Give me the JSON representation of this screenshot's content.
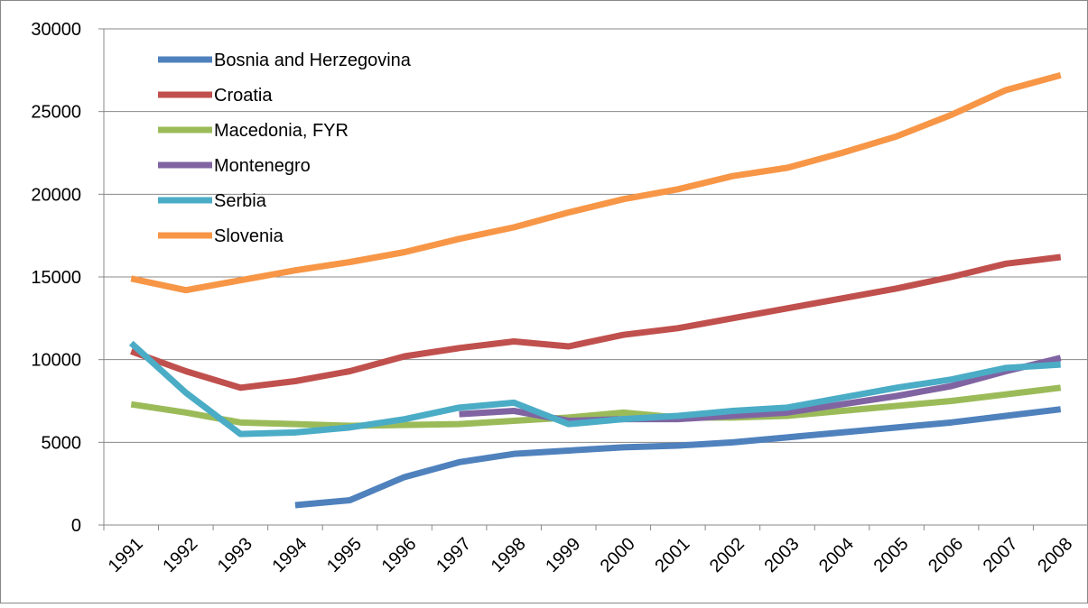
{
  "chart_data": {
    "type": "line",
    "categories": [
      "1991",
      "1992",
      "1993",
      "1994",
      "1995",
      "1996",
      "1997",
      "1998",
      "1999",
      "2000",
      "2001",
      "2002",
      "2003",
      "2004",
      "2005",
      "2006",
      "2007",
      "2008"
    ],
    "series": [
      {
        "name": "Bosnia and Herzegovina",
        "color": "#4f81bd",
        "values": [
          null,
          null,
          null,
          1200,
          1500,
          2900,
          3800,
          4300,
          4500,
          4700,
          4800,
          5000,
          5300,
          5600,
          5900,
          6200,
          6600,
          7000
        ]
      },
      {
        "name": "Croatia",
        "color": "#c0504d",
        "values": [
          10500,
          9300,
          8300,
          8700,
          9300,
          10200,
          10700,
          11100,
          10800,
          11500,
          11900,
          12500,
          13100,
          13700,
          14300,
          15000,
          15800,
          16200
        ]
      },
      {
        "name": "Macedonia, FYR",
        "color": "#9bbb59",
        "values": [
          7300,
          6800,
          6200,
          6100,
          6000,
          6050,
          6100,
          6300,
          6500,
          6800,
          6500,
          6500,
          6600,
          6900,
          7200,
          7500,
          7900,
          8300
        ]
      },
      {
        "name": "Montenegro",
        "color": "#8064a2",
        "values": [
          null,
          null,
          null,
          null,
          null,
          null,
          6700,
          6900,
          6300,
          6400,
          6400,
          6600,
          6800,
          7300,
          7800,
          8400,
          9300,
          10100
        ]
      },
      {
        "name": "Serbia",
        "color": "#4bacc6",
        "values": [
          11000,
          8000,
          5500,
          5600,
          5900,
          6400,
          7100,
          7400,
          6100,
          6400,
          6600,
          6900,
          7100,
          7700,
          8300,
          8800,
          9500,
          9700
        ]
      },
      {
        "name": "Slovenia",
        "color": "#f79646",
        "values": [
          14900,
          14200,
          14800,
          15400,
          15900,
          16500,
          17300,
          18000,
          18900,
          19700,
          20300,
          21100,
          21600,
          22500,
          23500,
          24800,
          26300,
          27200
        ]
      }
    ],
    "ylim": [
      0,
      30000
    ],
    "yticks": [
      0,
      5000,
      10000,
      15000,
      20000,
      25000,
      30000
    ],
    "grid": true,
    "legend": "top-left"
  }
}
